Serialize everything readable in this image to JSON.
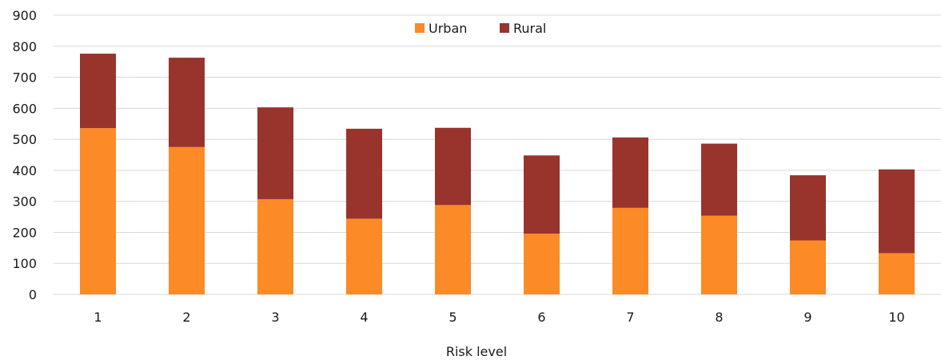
{
  "chart_data": {
    "type": "bar",
    "stacked": true,
    "title": "",
    "xlabel": "Risk level",
    "ylabel": "",
    "categories": [
      "1",
      "2",
      "3",
      "4",
      "5",
      "6",
      "7",
      "8",
      "9",
      "10"
    ],
    "ylim": [
      0,
      900
    ],
    "yticks": [
      0,
      100,
      200,
      300,
      400,
      500,
      600,
      700,
      800,
      900
    ],
    "grid": true,
    "legend_position": "top-center",
    "series": [
      {
        "name": "Urban",
        "color": "#fb8a27",
        "values": [
          536,
          475,
          307,
          244,
          288,
          196,
          279,
          254,
          174,
          133
        ]
      },
      {
        "name": "Rural",
        "color": "#99342c",
        "values": [
          240,
          288,
          296,
          290,
          249,
          252,
          227,
          232,
          210,
          270
        ]
      }
    ]
  }
}
